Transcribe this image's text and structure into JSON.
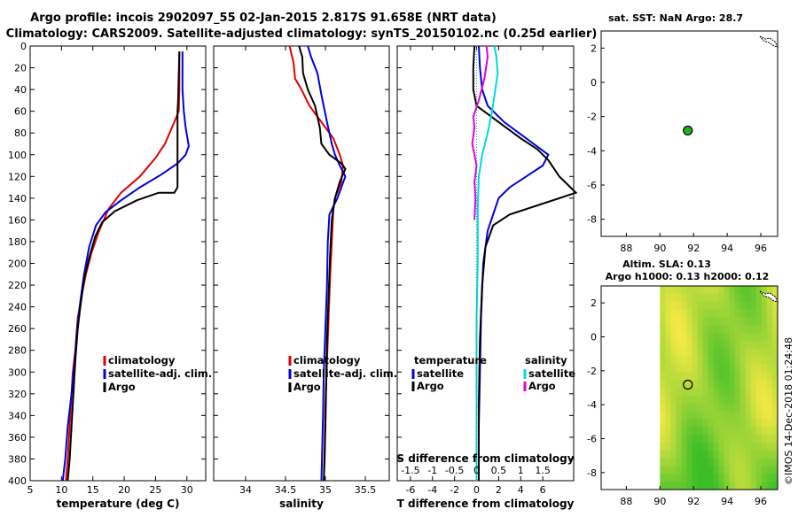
{
  "figure": {
    "title_line1": "Argo profile: incois 2902097_55 02-Jan-2015 2.817S 91.658E (NRT data)",
    "title_line2": "Climatology: CARS2009. Satellite-adjusted climatology: synTS_20150102.nc (0.25d earlier)",
    "watermark": "©IMOS 14-Dec-2018 01:24:48"
  },
  "colors": {
    "climatology": "#e00000",
    "satellite": "#0000dd",
    "argo": "#000000",
    "salinity_sat": "#00d8e0",
    "salinity_argo": "#e000e0",
    "map_fill_light": "#ffff60",
    "map_fill_dark": "#30c020",
    "float_marker": "#20b020"
  },
  "chart_data": [
    {
      "type": "line",
      "name": "temperature-profile",
      "xlabel": "temperature (deg C)",
      "ylabel": "",
      "xlim": [
        5,
        33
      ],
      "ylim": [
        400,
        0
      ],
      "xticks": [
        "5",
        "10",
        "15",
        "20",
        "25",
        "30"
      ],
      "yticks": [
        "0",
        "20",
        "40",
        "60",
        "80",
        "100",
        "120",
        "140",
        "160",
        "180",
        "200",
        "220",
        "240",
        "260",
        "280",
        "300",
        "320",
        "340",
        "360",
        "380",
        "400"
      ],
      "series": [
        {
          "name": "climatology",
          "color": "#e00000",
          "points": [
            [
              28.8,
              5
            ],
            [
              28.8,
              40
            ],
            [
              28.7,
              60
            ],
            [
              28.0,
              70
            ],
            [
              26.5,
              90
            ],
            [
              25.0,
              103
            ],
            [
              22.5,
              120
            ],
            [
              19.5,
              135
            ],
            [
              17.5,
              150
            ],
            [
              16.0,
              170
            ],
            [
              14.8,
              190
            ],
            [
              13.9,
              210
            ],
            [
              13.2,
              230
            ],
            [
              12.6,
              250
            ],
            [
              12.2,
              280
            ],
            [
              11.8,
              300
            ],
            [
              11.6,
              320
            ],
            [
              11.3,
              350
            ],
            [
              11.0,
              380
            ],
            [
              10.7,
              400
            ]
          ]
        },
        {
          "name": "satellite-adj. clim.",
          "color": "#0000dd",
          "points": [
            [
              29.3,
              5
            ],
            [
              29.3,
              40
            ],
            [
              29.5,
              60
            ],
            [
              29.8,
              75
            ],
            [
              30.3,
              92
            ],
            [
              29.8,
              100
            ],
            [
              28.5,
              108
            ],
            [
              26.0,
              118
            ],
            [
              22.5,
              130
            ],
            [
              19.5,
              142
            ],
            [
              17.0,
              153
            ],
            [
              15.5,
              165
            ],
            [
              14.4,
              185
            ],
            [
              13.6,
              210
            ],
            [
              13.0,
              235
            ],
            [
              12.5,
              260
            ],
            [
              12.1,
              290
            ],
            [
              11.6,
              320
            ],
            [
              11.0,
              350
            ],
            [
              10.6,
              380
            ],
            [
              10.2,
              400
            ]
          ]
        },
        {
          "name": "Argo",
          "color": "#000000",
          "points": [
            [
              28.8,
              5
            ],
            [
              28.6,
              50
            ],
            [
              28.5,
              60
            ],
            [
              28.5,
              130
            ],
            [
              28.0,
              135
            ],
            [
              25.5,
              135
            ],
            [
              22.0,
              142
            ],
            [
              18.5,
              152
            ],
            [
              16.5,
              162
            ],
            [
              15.4,
              175
            ],
            [
              14.4,
              195
            ],
            [
              13.6,
              215
            ],
            [
              13.0,
              240
            ],
            [
              12.6,
              260
            ],
            [
              12.2,
              290
            ],
            [
              11.9,
              320
            ],
            [
              11.6,
              350
            ],
            [
              11.3,
              380
            ],
            [
              11.0,
              400
            ]
          ]
        }
      ],
      "legend": {
        "position": "lower-right",
        "entries": [
          "climatology",
          "satellite-adj. clim.",
          "Argo"
        ]
      }
    },
    {
      "type": "line",
      "name": "salinity-profile",
      "xlabel": "salinity",
      "ylabel": "",
      "xlim": [
        33.6,
        35.8
      ],
      "ylim": [
        400,
        0
      ],
      "xticks": [
        "34",
        "34.5",
        "35",
        "35.5"
      ],
      "series": [
        {
          "name": "climatology",
          "color": "#e00000",
          "points": [
            [
              34.55,
              0
            ],
            [
              34.6,
              15
            ],
            [
              34.62,
              30
            ],
            [
              34.7,
              40
            ],
            [
              34.8,
              55
            ],
            [
              34.95,
              70
            ],
            [
              35.1,
              85
            ],
            [
              35.18,
              100
            ],
            [
              35.22,
              110
            ],
            [
              35.2,
              125
            ],
            [
              35.12,
              140
            ],
            [
              35.1,
              150
            ],
            [
              35.08,
              180
            ],
            [
              35.06,
              210
            ],
            [
              35.04,
              250
            ],
            [
              35.02,
              290
            ],
            [
              35.0,
              330
            ],
            [
              34.99,
              370
            ],
            [
              34.98,
              400
            ]
          ]
        },
        {
          "name": "satellite-adj. clim.",
          "color": "#0000dd",
          "points": [
            [
              34.78,
              0
            ],
            [
              34.82,
              10
            ],
            [
              34.9,
              25
            ],
            [
              34.95,
              45
            ],
            [
              35.02,
              70
            ],
            [
              35.08,
              90
            ],
            [
              35.12,
              100
            ],
            [
              35.18,
              110
            ],
            [
              35.25,
              120
            ],
            [
              35.15,
              140
            ],
            [
              35.05,
              155
            ],
            [
              35.03,
              180
            ],
            [
              35.02,
              220
            ],
            [
              35.0,
              260
            ],
            [
              34.98,
              300
            ],
            [
              34.97,
              340
            ],
            [
              34.96,
              370
            ],
            [
              34.95,
              400
            ]
          ]
        },
        {
          "name": "Argo",
          "color": "#000000",
          "points": [
            [
              34.67,
              0
            ],
            [
              34.71,
              10
            ],
            [
              34.72,
              25
            ],
            [
              34.78,
              40
            ],
            [
              34.87,
              55
            ],
            [
              34.9,
              65
            ],
            [
              34.93,
              75
            ],
            [
              34.95,
              90
            ],
            [
              35.05,
              100
            ],
            [
              35.2,
              108
            ],
            [
              35.25,
              113
            ],
            [
              35.18,
              125
            ],
            [
              35.12,
              140
            ],
            [
              35.08,
              160
            ],
            [
              35.06,
              190
            ],
            [
              35.04,
              230
            ],
            [
              35.02,
              270
            ],
            [
              35.01,
              310
            ],
            [
              35.0,
              350
            ],
            [
              34.99,
              380
            ],
            [
              34.98,
              400
            ]
          ]
        }
      ],
      "legend": {
        "position": "lower-right",
        "entries": [
          "climatology",
          "satellite-adj. clim.",
          "Argo"
        ]
      }
    },
    {
      "type": "line",
      "name": "difference-profile",
      "xlabel": "T difference from climatology",
      "xlabel_top": "S difference from climatology",
      "xlim": [
        -7.2,
        8.8
      ],
      "ylim": [
        400,
        0
      ],
      "xticks": [
        "-6",
        "-4",
        "-2",
        "0",
        "2",
        "4",
        "6"
      ],
      "xticks_top": [
        "-1.5",
        "-1",
        "-0.5",
        "0",
        "0.5",
        "1",
        "1.5"
      ],
      "series": [
        {
          "name": "temperature satellite",
          "color": "#0000dd",
          "points": [
            [
              0.2,
              0
            ],
            [
              0.3,
              20
            ],
            [
              0.5,
              40
            ],
            [
              1.0,
              55
            ],
            [
              2.5,
              70
            ],
            [
              4.5,
              85
            ],
            [
              6.5,
              100
            ],
            [
              6.0,
              110
            ],
            [
              4.5,
              120
            ],
            [
              3.0,
              130
            ],
            [
              2.0,
              140
            ],
            [
              1.5,
              155
            ],
            [
              1.0,
              170
            ],
            [
              0.6,
              200
            ],
            [
              0.4,
              250
            ],
            [
              0.3,
              300
            ],
            [
              0.2,
              350
            ],
            [
              0.2,
              400
            ]
          ]
        },
        {
          "name": "temperature Argo",
          "color": "#000000",
          "points": [
            [
              -0.2,
              0
            ],
            [
              -0.3,
              20
            ],
            [
              -0.3,
              40
            ],
            [
              0.0,
              55
            ],
            [
              2.0,
              70
            ],
            [
              4.0,
              85
            ],
            [
              5.5,
              95
            ],
            [
              6.5,
              105
            ],
            [
              7.5,
              120
            ],
            [
              9.0,
              135
            ],
            [
              6.0,
              145
            ],
            [
              3.0,
              155
            ],
            [
              1.5,
              165
            ],
            [
              0.8,
              185
            ],
            [
              0.5,
              220
            ],
            [
              0.3,
              270
            ],
            [
              0.2,
              330
            ],
            [
              0.2,
              400
            ]
          ]
        },
        {
          "name": "salinity satellite",
          "color": "#00d8e0",
          "points": [
            [
              1.6,
              0
            ],
            [
              1.8,
              10
            ],
            [
              1.9,
              25
            ],
            [
              1.7,
              40
            ],
            [
              1.4,
              60
            ],
            [
              1.0,
              80
            ],
            [
              0.5,
              100
            ],
            [
              0.2,
              120
            ],
            [
              0.1,
              150
            ],
            [
              0.1,
              200
            ],
            [
              0.0,
              250
            ],
            [
              0.0,
              300
            ],
            [
              0.0,
              350
            ],
            [
              0.0,
              400
            ]
          ]
        },
        {
          "name": "salinity Argo",
          "color": "#e000e0",
          "points": [
            [
              0.9,
              0
            ],
            [
              1.0,
              10
            ],
            [
              0.7,
              30
            ],
            [
              0.2,
              50
            ],
            [
              -0.3,
              65
            ],
            [
              -0.2,
              75
            ],
            [
              -0.4,
              90
            ],
            [
              -0.2,
              100
            ],
            [
              0.0,
              110
            ],
            [
              -0.2,
              125
            ],
            [
              -0.1,
              140
            ],
            [
              -0.2,
              160
            ]
          ]
        }
      ],
      "legend": {
        "position": "lower-center",
        "temperature_header": "temperature",
        "salinity_header": "salinity",
        "temperature_entries": [
          "satellite",
          "Argo"
        ],
        "salinity_entries": [
          "satellite",
          "Argo"
        ]
      }
    },
    {
      "type": "scatter",
      "name": "sst-map",
      "title": "sat. SST: NaN Argo: 28.7",
      "xlim": [
        86.5,
        97
      ],
      "ylim": [
        -9,
        3
      ],
      "xticks": [
        "88",
        "90",
        "92",
        "94",
        "96"
      ],
      "yticks": [
        "2",
        "0",
        "-2",
        "-4",
        "-6",
        "-8"
      ],
      "float_position": {
        "lon": 91.658,
        "lat": -2.817
      }
    },
    {
      "type": "heatmap",
      "name": "sla-map",
      "title_line1": "Altim. SLA: 0.13",
      "title_line2": "Argo h1000: 0.13 h2000: 0.12",
      "xlim": [
        86.5,
        97
      ],
      "ylim": [
        -9,
        3
      ],
      "data_xlim": [
        90,
        97
      ],
      "xticks": [
        "88",
        "90",
        "92",
        "94",
        "96"
      ],
      "yticks": [
        "2",
        "0",
        "-2",
        "-4",
        "-6",
        "-8"
      ],
      "float_position": {
        "lon": 91.658,
        "lat": -2.817
      }
    }
  ]
}
